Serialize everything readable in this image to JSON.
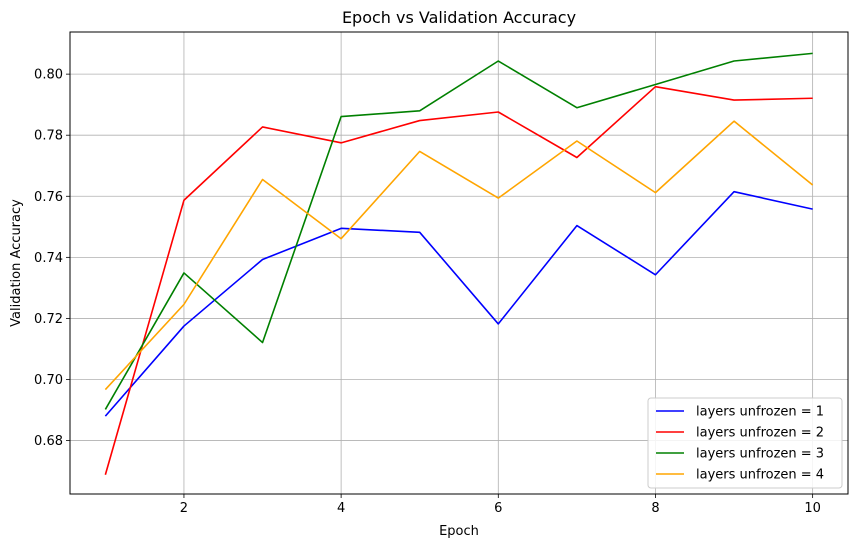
{
  "chart_data": {
    "type": "line",
    "title": "Epoch vs Validation Accuracy",
    "xlabel": "Epoch",
    "ylabel": "Validation Accuracy",
    "x": [
      1,
      2,
      3,
      4,
      5,
      6,
      7,
      8,
      9,
      10
    ],
    "xlim": [
      0.55,
      10.45
    ],
    "ylim": [
      0.6625,
      0.8138
    ],
    "xticks": [
      2,
      4,
      6,
      8,
      10
    ],
    "yticks": [
      0.68,
      0.7,
      0.72,
      0.74,
      0.76,
      0.78,
      0.8
    ],
    "xtick_labels": [
      "2",
      "4",
      "6",
      "8",
      "10"
    ],
    "ytick_labels": [
      "0.68",
      "0.70",
      "0.72",
      "0.74",
      "0.76",
      "0.78",
      "0.80"
    ],
    "grid": true,
    "legend_position": "bottom-right",
    "series": [
      {
        "name": "layers unfrozen = 1",
        "color": "#0000ff",
        "values": [
          0.688,
          0.7175,
          0.7393,
          0.7495,
          0.7482,
          0.7182,
          0.7504,
          0.7343,
          0.7615,
          0.7558
        ]
      },
      {
        "name": "layers unfrozen = 2",
        "color": "#ff0000",
        "values": [
          0.6688,
          0.7587,
          0.7827,
          0.7775,
          0.7848,
          0.7876,
          0.7727,
          0.7959,
          0.7915,
          0.7921
        ]
      },
      {
        "name": "layers unfrozen = 3",
        "color": "#008000",
        "values": [
          0.6902,
          0.7349,
          0.7121,
          0.7861,
          0.788,
          0.8043,
          0.789,
          0.7966,
          0.8043,
          0.8068
        ]
      },
      {
        "name": "layers unfrozen = 4",
        "color": "#ffa500",
        "values": [
          0.6967,
          0.7246,
          0.7655,
          0.7461,
          0.7747,
          0.7594,
          0.7781,
          0.7612,
          0.7846,
          0.7637
        ]
      }
    ]
  }
}
